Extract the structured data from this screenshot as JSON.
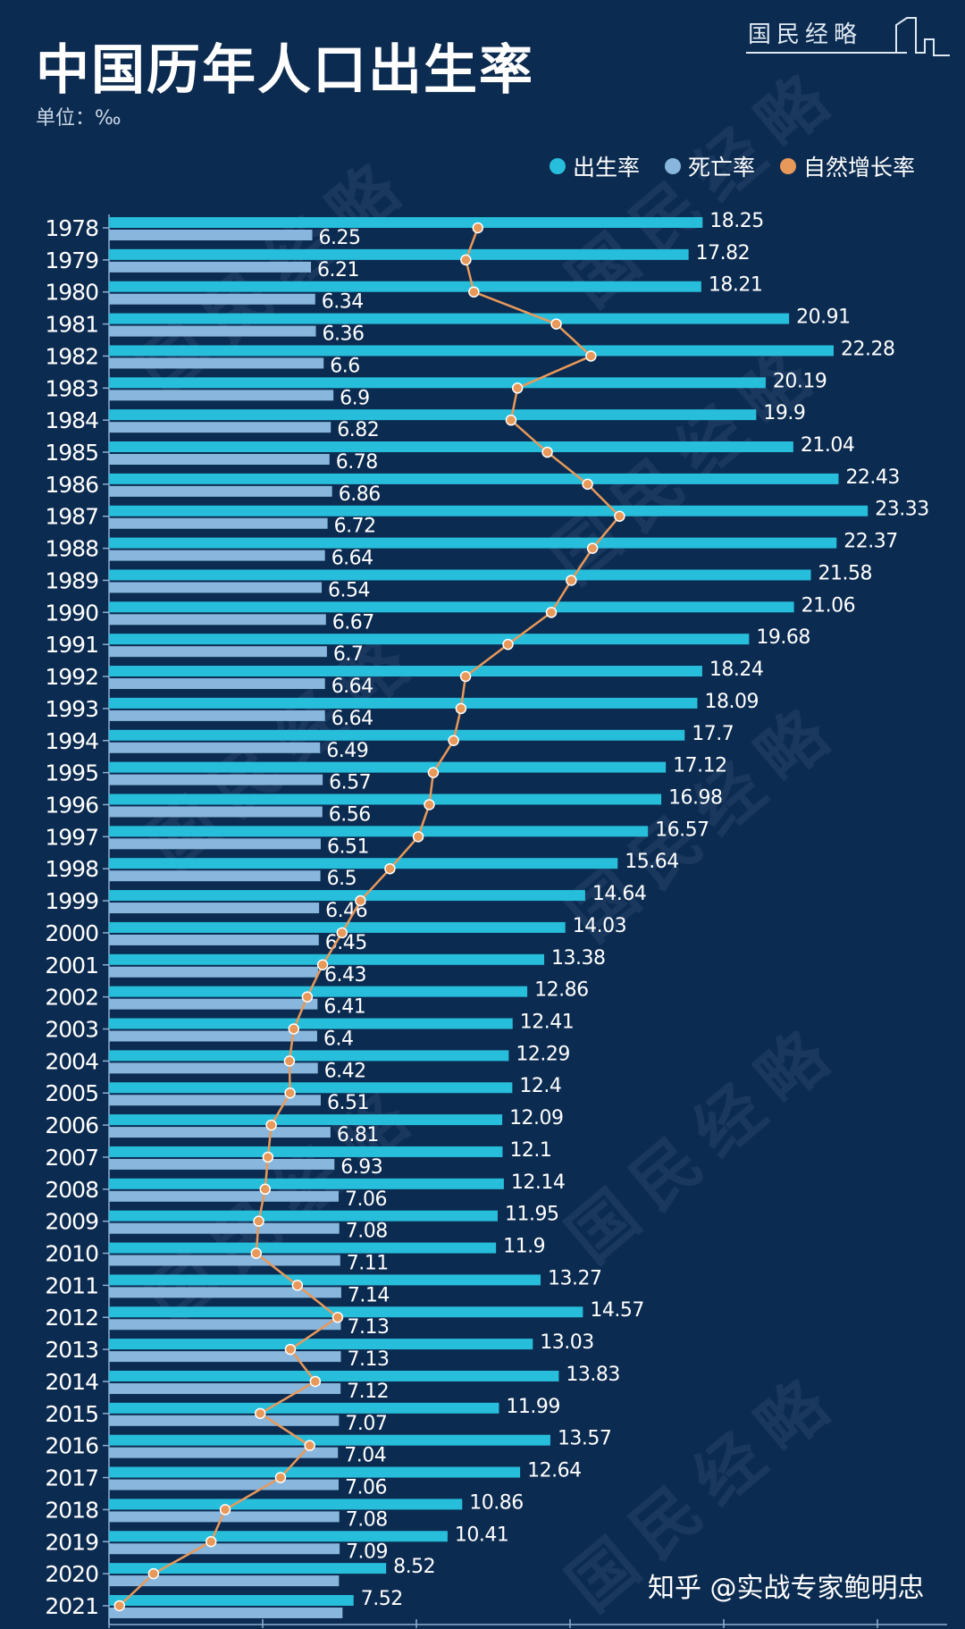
{
  "header": {
    "title": "中国历年人口出生率",
    "unit": "单位：‰",
    "logo_text": "国民经略",
    "watermark_text": "国民经略",
    "credit": "知乎 @实战专家鲍明忠"
  },
  "colors": {
    "background": "#0c2b50",
    "birth": "#27bedc",
    "death": "#88b6dc",
    "natural": "#e8995a"
  },
  "chart_data": {
    "type": "bar",
    "orientation": "horizontal",
    "title": "中国历年人口出生率",
    "unit": "‰",
    "legend_position": "top-right",
    "categories": [
      "1978",
      "1979",
      "1980",
      "1981",
      "1982",
      "1983",
      "1984",
      "1985",
      "1986",
      "1987",
      "1988",
      "1989",
      "1990",
      "1991",
      "1992",
      "1993",
      "1994",
      "1995",
      "1996",
      "1997",
      "1998",
      "1999",
      "2000",
      "2001",
      "2002",
      "2003",
      "2004",
      "2005",
      "2006",
      "2007",
      "2008",
      "2009",
      "2010",
      "2011",
      "2012",
      "2013",
      "2014",
      "2015",
      "2016",
      "2017",
      "2018",
      "2019",
      "2020",
      "2021"
    ],
    "series": [
      {
        "name": "出生率",
        "type": "bar",
        "values": [
          18.25,
          17.82,
          18.21,
          20.91,
          22.28,
          20.19,
          19.9,
          21.04,
          22.43,
          23.33,
          22.37,
          21.58,
          21.06,
          19.68,
          18.24,
          18.09,
          17.7,
          17.12,
          16.98,
          16.57,
          15.64,
          14.64,
          14.03,
          13.38,
          12.86,
          12.41,
          12.29,
          12.4,
          12.09,
          12.1,
          12.14,
          11.95,
          11.9,
          13.27,
          14.57,
          13.03,
          13.83,
          11.99,
          13.57,
          12.64,
          10.86,
          10.41,
          8.52,
          7.52
        ],
        "labels": [
          "18.25",
          "17.82",
          "18.21",
          "20.91",
          "22.28",
          "20.19",
          "19.9",
          "21.04",
          "22.43",
          "23.33",
          "22.37",
          "21.58",
          "21.06",
          "19.68",
          "18.24",
          "18.09",
          "17.7",
          "17.12",
          "16.98",
          "16.57",
          "15.64",
          "14.64",
          "14.03",
          "13.38",
          "12.86",
          "12.41",
          "12.29",
          "12.4",
          "12.09",
          "12.1",
          "12.14",
          "11.95",
          "11.9",
          "13.27",
          "14.57",
          "13.03",
          "13.83",
          "11.99",
          "13.57",
          "12.64",
          "10.86",
          "10.41",
          "8.52",
          "7.52"
        ]
      },
      {
        "name": "死亡率",
        "type": "bar",
        "values": [
          6.25,
          6.21,
          6.34,
          6.36,
          6.6,
          6.9,
          6.82,
          6.78,
          6.86,
          6.72,
          6.64,
          6.54,
          6.67,
          6.7,
          6.64,
          6.64,
          6.49,
          6.57,
          6.56,
          6.51,
          6.5,
          6.46,
          6.45,
          6.43,
          6.41,
          6.4,
          6.42,
          6.51,
          6.81,
          6.93,
          7.06,
          7.08,
          7.11,
          7.14,
          7.13,
          7.13,
          7.12,
          7.07,
          7.04,
          7.06,
          7.08,
          7.09,
          7.07,
          7.18
        ],
        "labels": [
          "6.25",
          "6.21",
          "6.34",
          "6.36",
          "6.6",
          "6.9",
          "6.82",
          "6.78",
          "6.86",
          "6.72",
          "6.64",
          "6.54",
          "6.67",
          "6.7",
          "6.64",
          "6.64",
          "6.49",
          "6.57",
          "6.56",
          "6.51",
          "6.5",
          "6.46",
          "6.45",
          "6.43",
          "6.41",
          "6.4",
          "6.42",
          "6.51",
          "6.81",
          "6.93",
          "7.06",
          "7.08",
          "7.11",
          "7.14",
          "7.13",
          "7.13",
          "7.12",
          "7.07",
          "7.04",
          "7.06",
          "7.08",
          "7.09",
          "",
          ""
        ]
      },
      {
        "name": "自然增长率",
        "type": "line",
        "values": [
          12.0,
          11.61,
          11.87,
          14.55,
          15.68,
          13.29,
          13.08,
          14.26,
          15.57,
          16.61,
          15.73,
          15.04,
          14.39,
          12.98,
          11.6,
          11.45,
          11.21,
          10.55,
          10.42,
          10.06,
          9.14,
          8.18,
          7.58,
          6.95,
          6.45,
          6.01,
          5.87,
          5.89,
          5.28,
          5.17,
          5.08,
          4.87,
          4.79,
          6.13,
          7.44,
          5.9,
          6.71,
          4.92,
          6.53,
          5.58,
          3.78,
          3.32,
          1.45,
          0.34
        ]
      }
    ],
    "grid": false
  }
}
